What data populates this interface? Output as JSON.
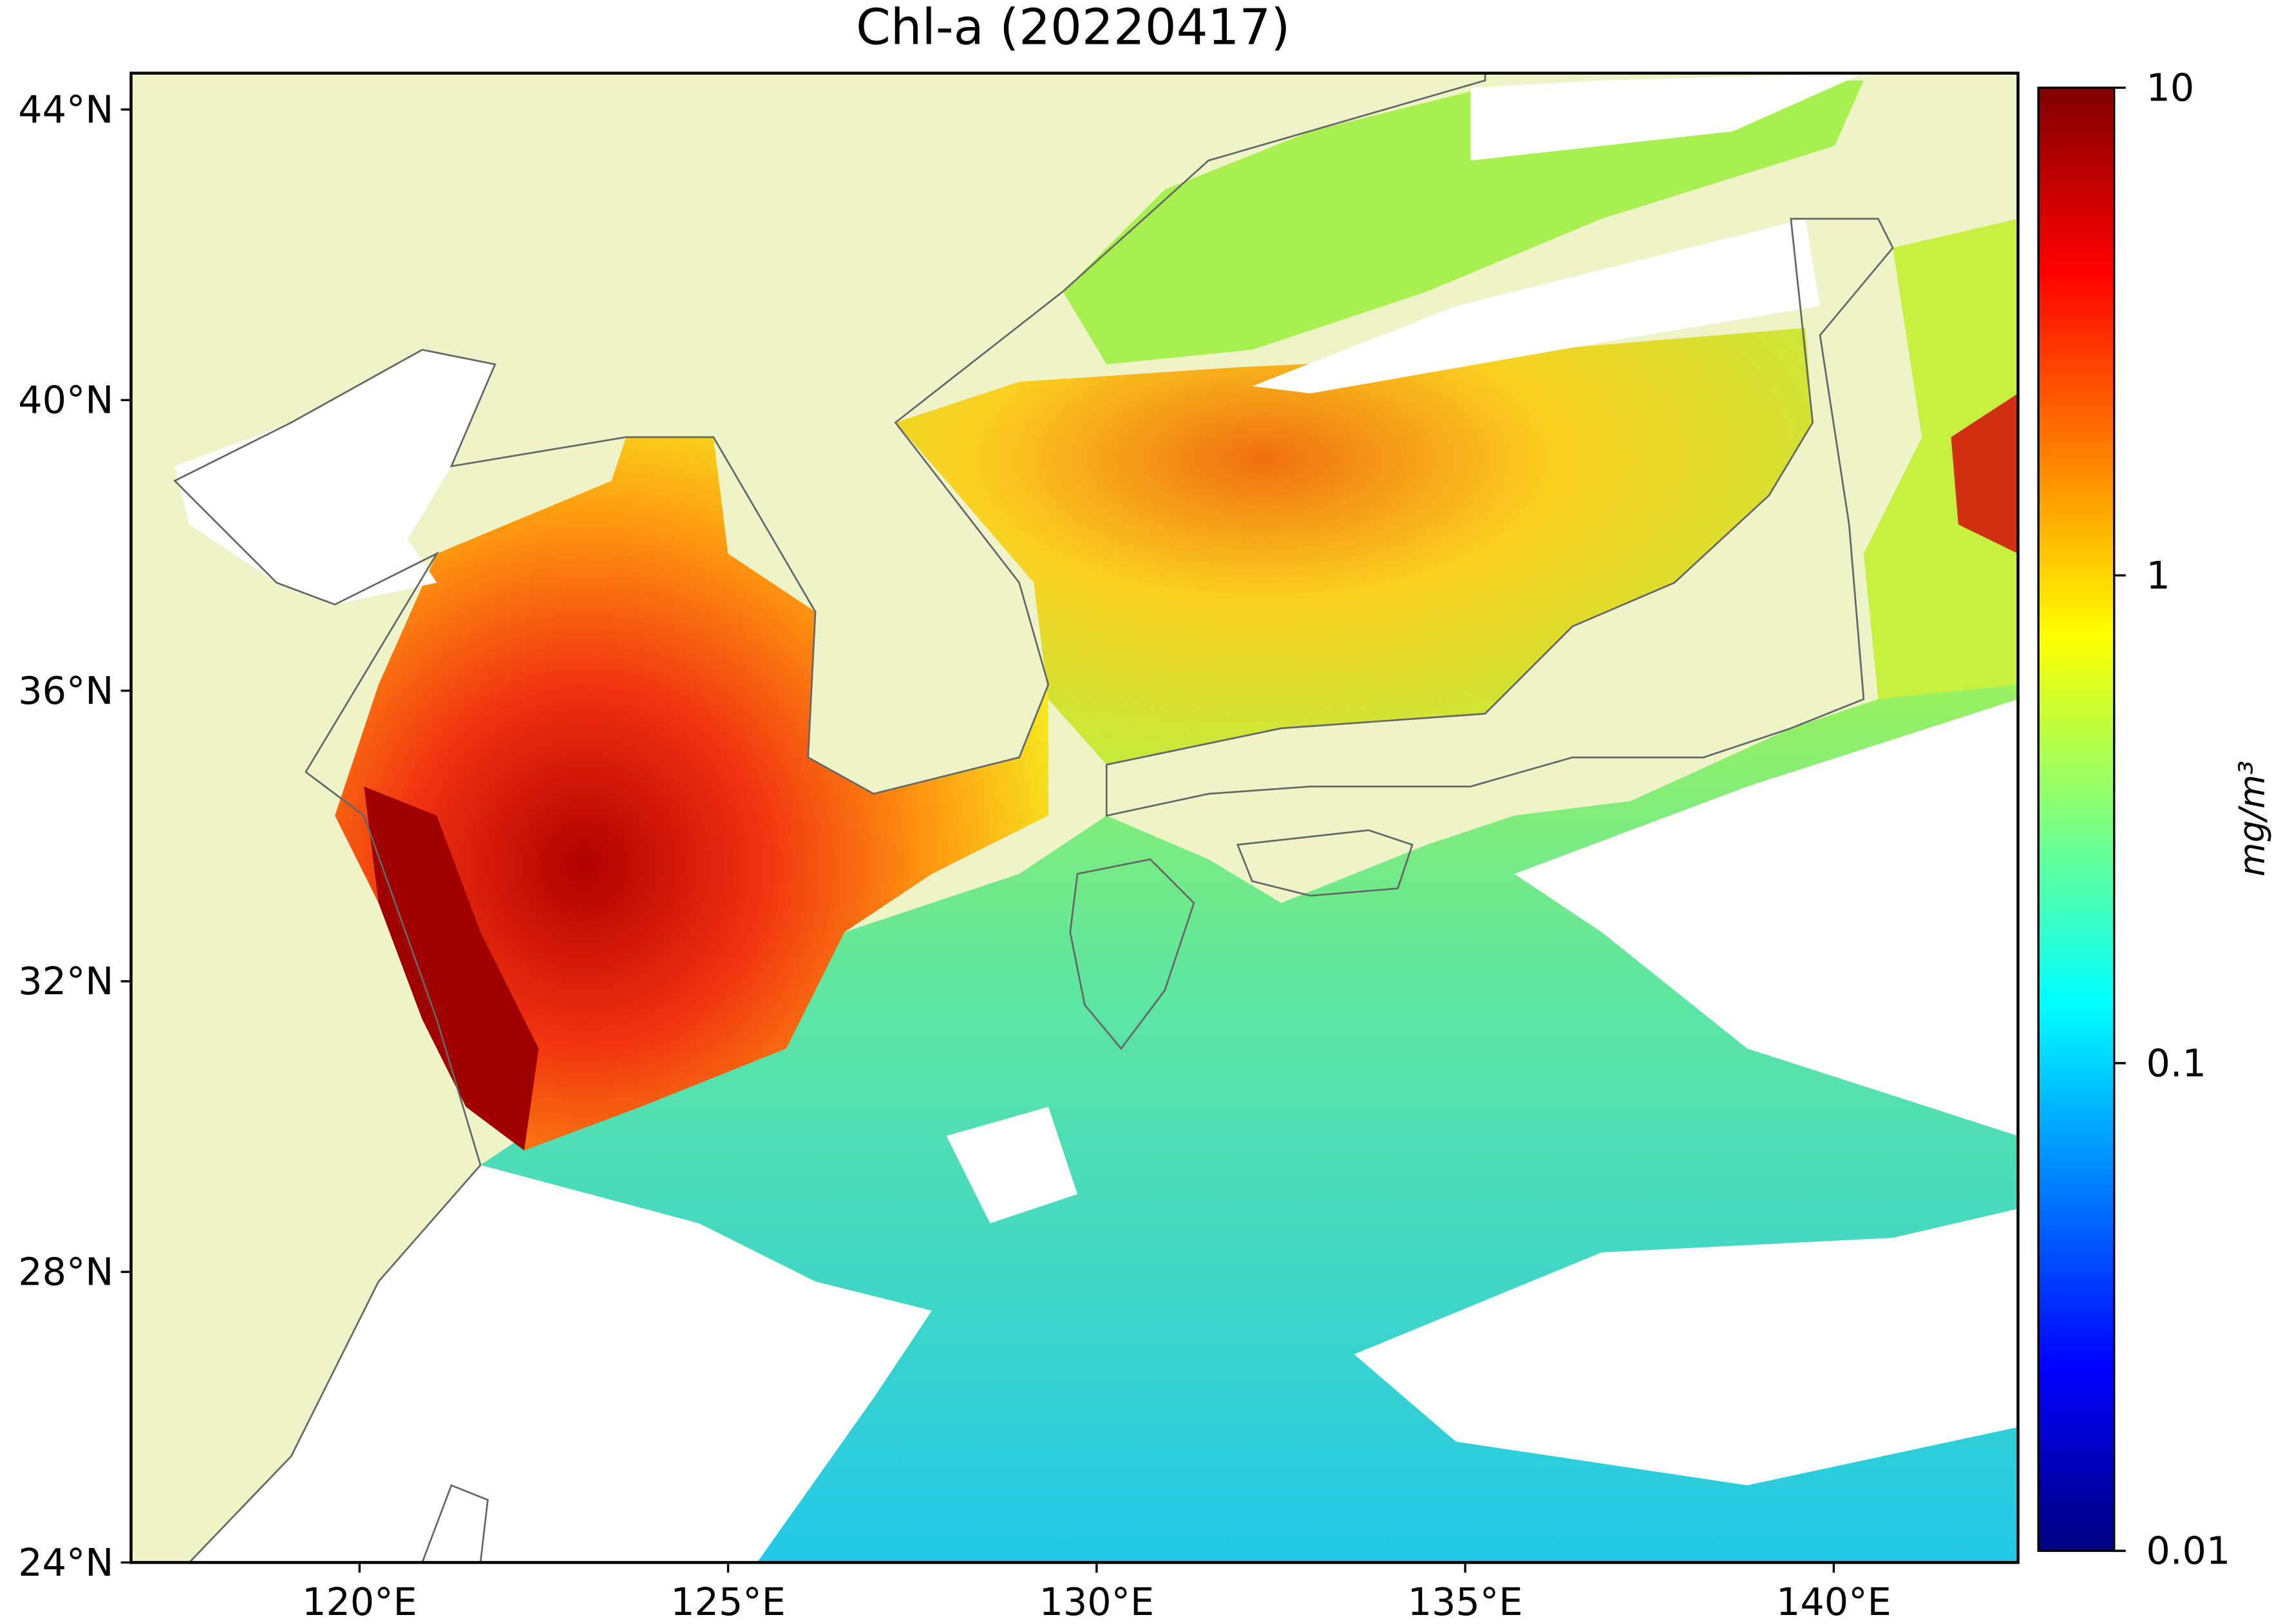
{
  "chart_data": {
    "type": "map",
    "title": "Chl-a (20220417)",
    "xlim": [
      116.9,
      142.5
    ],
    "ylim": [
      24,
      44.5
    ],
    "xticks": [
      {
        "value": 120,
        "label": "120°E"
      },
      {
        "value": 125,
        "label": "125°E"
      },
      {
        "value": 130,
        "label": "130°E"
      },
      {
        "value": 135,
        "label": "135°E"
      },
      {
        "value": 140,
        "label": "140°E"
      }
    ],
    "yticks": [
      {
        "value": 24,
        "label": "24°N"
      },
      {
        "value": 28,
        "label": "28°N"
      },
      {
        "value": 32,
        "label": "32°N"
      },
      {
        "value": 36,
        "label": "36°N"
      },
      {
        "value": 40,
        "label": "40°N"
      },
      {
        "value": 44,
        "label": "44°N"
      }
    ],
    "colorbar": {
      "label": "mg/m³",
      "scale": "log",
      "lim": [
        0.01,
        10
      ],
      "ticks": [
        0.01,
        0.1,
        1,
        10
      ],
      "colormap": "jet"
    }
  }
}
